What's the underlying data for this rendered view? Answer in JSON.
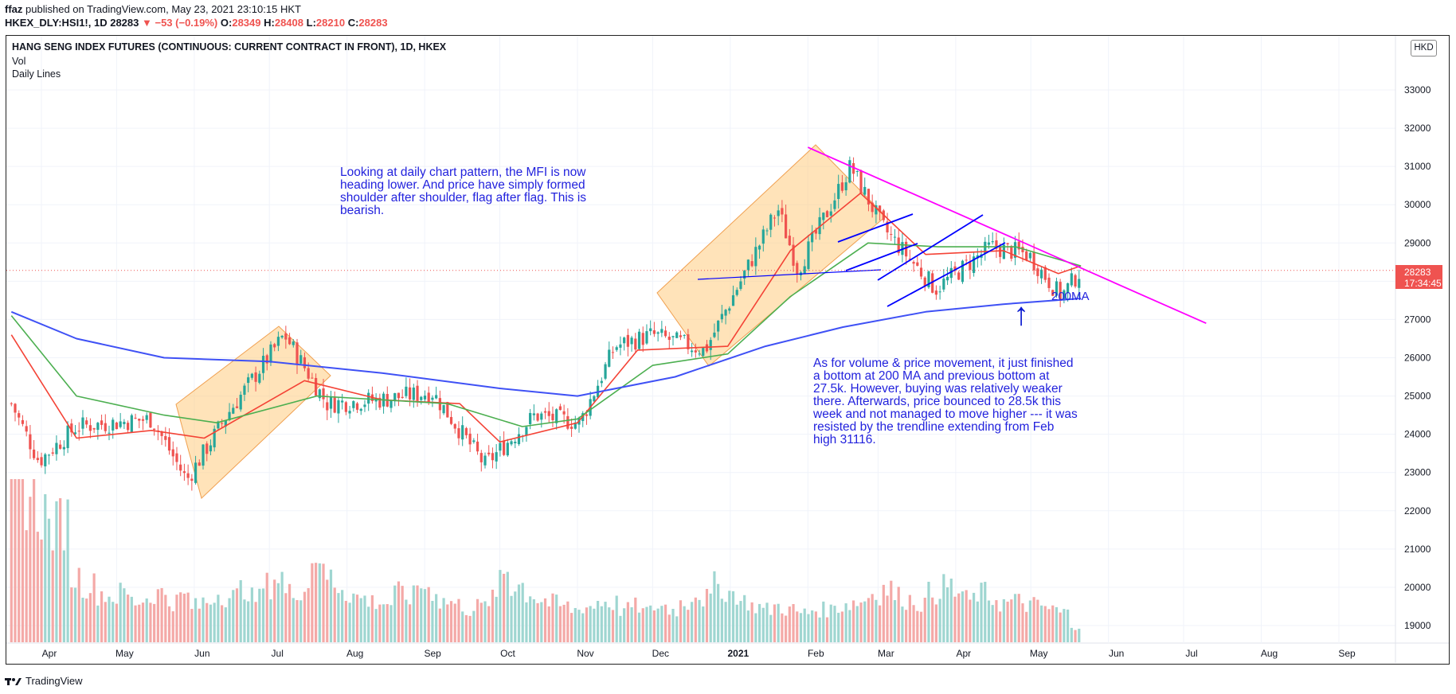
{
  "header": {
    "author": "ffaz",
    "published_text": "published on TradingView.com, May 23, 2021 23:10:15 HKT",
    "symbol": "HKEX_DLY:HSI1!, 1D",
    "last": "28283",
    "change": "▼ −53 (−0.19%)",
    "ohlc": "O:28349 H:28408 L:28210 C:28283",
    "o_label": "O:",
    "o_value": "28349",
    "h_label": "H:",
    "h_value": "28408",
    "l_label": "L:",
    "l_value": "28210",
    "c_label": "C:",
    "c_value": "28283"
  },
  "pane": {
    "title": "HANG SENG INDEX FUTURES (CONTINUOUS: CURRENT CONTRACT IN FRONT), 1D, HKEX",
    "legend": [
      "Vol",
      "Daily Lines"
    ],
    "currency": "HKD",
    "price_tag": "28283",
    "countdown": "17:34:45"
  },
  "annotations": {
    "text1": "Looking at daily chart pattern, the MFI is now heading lower. And price have simply formed shoulder after shoulder, flag after flag. This is bearish.",
    "text2": "As for volume & price movement, it just finished a bottom at 200 MA and previous bottom at 27.5k. However, buying was relatively weaker there. Afterwards, price bounced to 28.5k this week and not managed to move higher --- it was resisted by the trendline extending from Feb high 31116.",
    "ma_label": "200MA",
    "arrow": "↑"
  },
  "footer": {
    "brand": "TradingView"
  },
  "colors": {
    "up": "#26a69a",
    "down": "#ef5350",
    "ma_fast": "#f44336",
    "ma_mid": "#4caf50",
    "ma_200": "#3f51f5",
    "trendline": "#ff00ff",
    "channel": "#0000ff",
    "annotation": "#2222dd",
    "box_fill": "#ffcc80"
  },
  "chart_data": {
    "type": "candlestick",
    "title": "HANG SENG INDEX FUTURES (CONTINUOUS: CURRENT CONTRACT IN FRONT), 1D, HKEX",
    "x_ticks": [
      "Apr",
      "May",
      "Jun",
      "Jul",
      "Aug",
      "Sep",
      "Oct",
      "Nov",
      "Dec",
      "2021",
      "Feb",
      "Mar",
      "Apr",
      "May",
      "Jun",
      "Jul",
      "Aug",
      "Sep"
    ],
    "y_ticks": [
      19000,
      20000,
      21000,
      22000,
      23000,
      24000,
      25000,
      26000,
      27000,
      28000,
      29000,
      30000,
      31000,
      32000,
      33000
    ],
    "ylim": [
      18700,
      34300
    ],
    "last_price": 28283,
    "price_path": [
      {
        "x": "2020-03-20",
        "close": 24800
      },
      {
        "x": "2020-03-31",
        "close": 23300
      },
      {
        "x": "2020-04-15",
        "close": 24200
      },
      {
        "x": "2020-04-30",
        "close": 24300
      },
      {
        "x": "2020-05-15",
        "close": 24400
      },
      {
        "x": "2020-05-29",
        "close": 22800
      },
      {
        "x": "2020-06-15",
        "close": 24600
      },
      {
        "x": "2020-07-07",
        "close": 26600
      },
      {
        "x": "2020-07-24",
        "close": 24800
      },
      {
        "x": "2020-08-14",
        "close": 24900
      },
      {
        "x": "2020-09-04",
        "close": 25100
      },
      {
        "x": "2020-09-25",
        "close": 23200
      },
      {
        "x": "2020-10-15",
        "close": 24500
      },
      {
        "x": "2020-11-02",
        "close": 24300
      },
      {
        "x": "2020-11-16",
        "close": 26300
      },
      {
        "x": "2020-12-01",
        "close": 26600
      },
      {
        "x": "2020-12-22",
        "close": 26200
      },
      {
        "x": "2021-01-20",
        "close": 29900
      },
      {
        "x": "2021-01-28",
        "close": 28300
      },
      {
        "x": "2021-02-18",
        "close": 31000
      },
      {
        "x": "2021-03-03",
        "close": 29400
      },
      {
        "x": "2021-03-24",
        "close": 27800
      },
      {
        "x": "2021-04-15",
        "close": 28900
      },
      {
        "x": "2021-04-30",
        "close": 28700
      },
      {
        "x": "2021-05-13",
        "close": 27600
      },
      {
        "x": "2021-05-21",
        "close": 28283
      }
    ],
    "moving_averages": [
      {
        "name": "",
        "points": [
          {
            "x": "2020-03-20",
            "y": 26600
          },
          {
            "x": "2020-04-15",
            "y": 23900
          },
          {
            "x": "2020-05-15",
            "y": 24100
          },
          {
            "x": "2020-06-05",
            "y": 23900
          },
          {
            "x": "2020-07-15",
            "y": 25400
          },
          {
            "x": "2020-08-15",
            "y": 24900
          },
          {
            "x": "2020-09-15",
            "y": 24800
          },
          {
            "x": "2020-10-01",
            "y": 23800
          },
          {
            "x": "2020-11-01",
            "y": 24300
          },
          {
            "x": "2020-11-25",
            "y": 26200
          },
          {
            "x": "2020-12-31",
            "y": 26300
          },
          {
            "x": "2021-01-25",
            "y": 28800
          },
          {
            "x": "2021-02-22",
            "y": 30300
          },
          {
            "x": "2021-03-20",
            "y": 28700
          },
          {
            "x": "2021-04-20",
            "y": 28800
          },
          {
            "x": "2021-05-12",
            "y": 28200
          },
          {
            "x": "2021-05-21",
            "y": 28400
          }
        ]
      },
      {
        "name": "",
        "points": [
          {
            "x": "2020-03-20",
            "y": 27100
          },
          {
            "x": "2020-04-15",
            "y": 25000
          },
          {
            "x": "2020-05-20",
            "y": 24500
          },
          {
            "x": "2020-06-10",
            "y": 24300
          },
          {
            "x": "2020-07-20",
            "y": 25000
          },
          {
            "x": "2020-09-10",
            "y": 24800
          },
          {
            "x": "2020-10-10",
            "y": 24200
          },
          {
            "x": "2020-11-01",
            "y": 24400
          },
          {
            "x": "2020-12-01",
            "y": 25800
          },
          {
            "x": "2020-12-31",
            "y": 26100
          },
          {
            "x": "2021-01-25",
            "y": 27600
          },
          {
            "x": "2021-02-25",
            "y": 29000
          },
          {
            "x": "2021-03-25",
            "y": 28900
          },
          {
            "x": "2021-04-25",
            "y": 28900
          },
          {
            "x": "2021-05-21",
            "y": 28400
          }
        ]
      },
      {
        "name": "200MA",
        "points": [
          {
            "x": "2020-03-20",
            "y": 27200
          },
          {
            "x": "2020-04-15",
            "y": 26500
          },
          {
            "x": "2020-05-20",
            "y": 26000
          },
          {
            "x": "2020-07-01",
            "y": 25900
          },
          {
            "x": "2020-08-15",
            "y": 25600
          },
          {
            "x": "2020-10-01",
            "y": 25200
          },
          {
            "x": "2020-11-01",
            "y": 25000
          },
          {
            "x": "2020-12-10",
            "y": 25500
          },
          {
            "x": "2021-01-15",
            "y": 26300
          },
          {
            "x": "2021-02-15",
            "y": 26800
          },
          {
            "x": "2021-03-20",
            "y": 27200
          },
          {
            "x": "2021-04-20",
            "y": 27400
          },
          {
            "x": "2021-05-21",
            "y": 27550
          }
        ]
      }
    ],
    "trendline": [
      {
        "x": "2021-02-01",
        "y": 31500
      },
      {
        "x": "2021-07-10",
        "y": 26900
      }
    ],
    "volume": {
      "relative": true,
      "values": [
        0.95,
        0.9,
        0.8,
        0.7,
        0.75,
        0.4,
        0.35,
        0.3,
        0.28,
        0.3,
        0.25,
        0.27,
        0.3,
        0.25,
        0.28,
        0.22,
        0.25,
        0.3,
        0.28,
        0.33,
        0.27,
        0.35,
        0.4,
        0.3,
        0.33,
        0.55,
        0.4,
        0.35,
        0.3,
        0.27,
        0.25,
        0.24,
        0.3,
        0.28,
        0.35,
        0.32,
        0.25,
        0.23,
        0.2,
        0.22,
        0.26,
        0.45,
        0.35,
        0.3,
        0.26,
        0.24,
        0.22,
        0.2,
        0.22,
        0.25,
        0.24,
        0.2,
        0.22,
        0.19,
        0.22,
        0.2,
        0.24,
        0.3,
        0.27,
        0.35,
        0.3,
        0.25,
        0.22,
        0.2,
        0.22,
        0.2,
        0.18,
        0.2,
        0.2,
        0.22,
        0.24,
        0.25,
        0.3,
        0.33,
        0.28,
        0.26,
        0.24,
        0.3,
        0.34,
        0.3,
        0.26,
        0.3,
        0.27,
        0.24,
        0.25,
        0.23,
        0.22,
        0.2,
        0.18,
        0.1
      ]
    }
  }
}
